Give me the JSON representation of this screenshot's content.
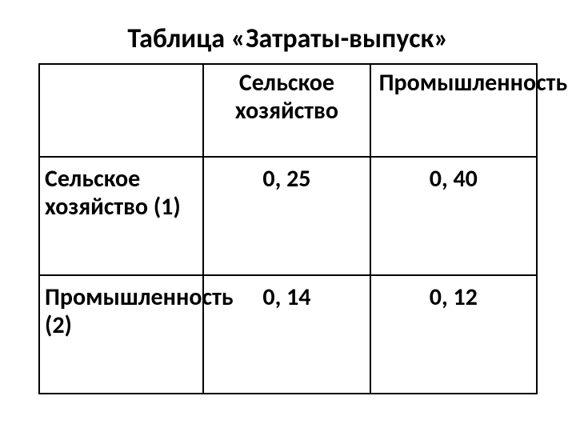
{
  "title": "Таблица «Затраты-выпуск»",
  "table": {
    "columns": [
      "",
      "Сельское хозяйство",
      "Промышленность"
    ],
    "rows": [
      {
        "label": "Сельское хозяйство (1)",
        "values": [
          "0, 25",
          "0, 40"
        ]
      },
      {
        "label": "Промышленность  (2)",
        "values": [
          "0, 14",
          "0, 12"
        ]
      }
    ]
  }
}
